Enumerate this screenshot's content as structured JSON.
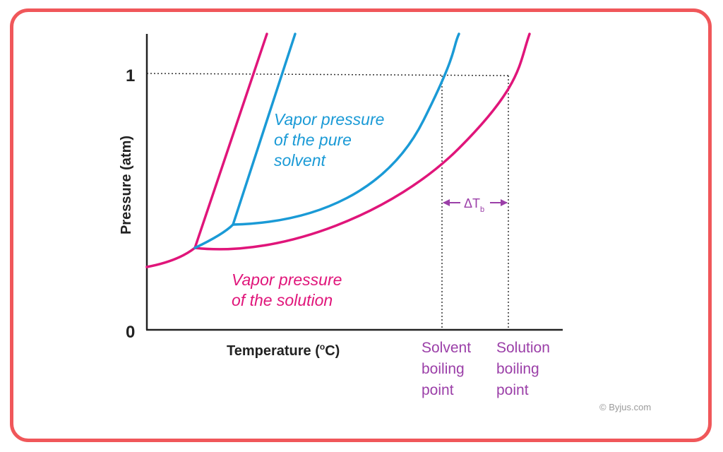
{
  "axes": {
    "y_label": "Pressure (atm)",
    "y_tick_top": "1",
    "y_tick_bottom": "0",
    "x_label_main": "Temperature (",
    "x_label_deg": "o",
    "x_label_unit": "C)"
  },
  "curves": {
    "solvent_label_line1": "Vapor pressure",
    "solvent_label_line2": "of the pure",
    "solvent_label_line3": "solvent",
    "solution_label_line1": "Vapor pressure",
    "solution_label_line2": "of the solution"
  },
  "boiling_points": {
    "solvent_line1": "Solvent",
    "solvent_line2": "boiling",
    "solvent_line3": "point",
    "solution_line1": "Solution",
    "solution_line2": "boiling",
    "solution_line3": "point",
    "delta_symbol": "ΔT",
    "delta_subscript": "b"
  },
  "watermark": "© Byjus.com",
  "colors": {
    "frame": "#f0575a",
    "solvent": "#1a9ad6",
    "solution": "#e0157a",
    "annotation": "#9b3fa8",
    "axis": "#222222"
  }
}
